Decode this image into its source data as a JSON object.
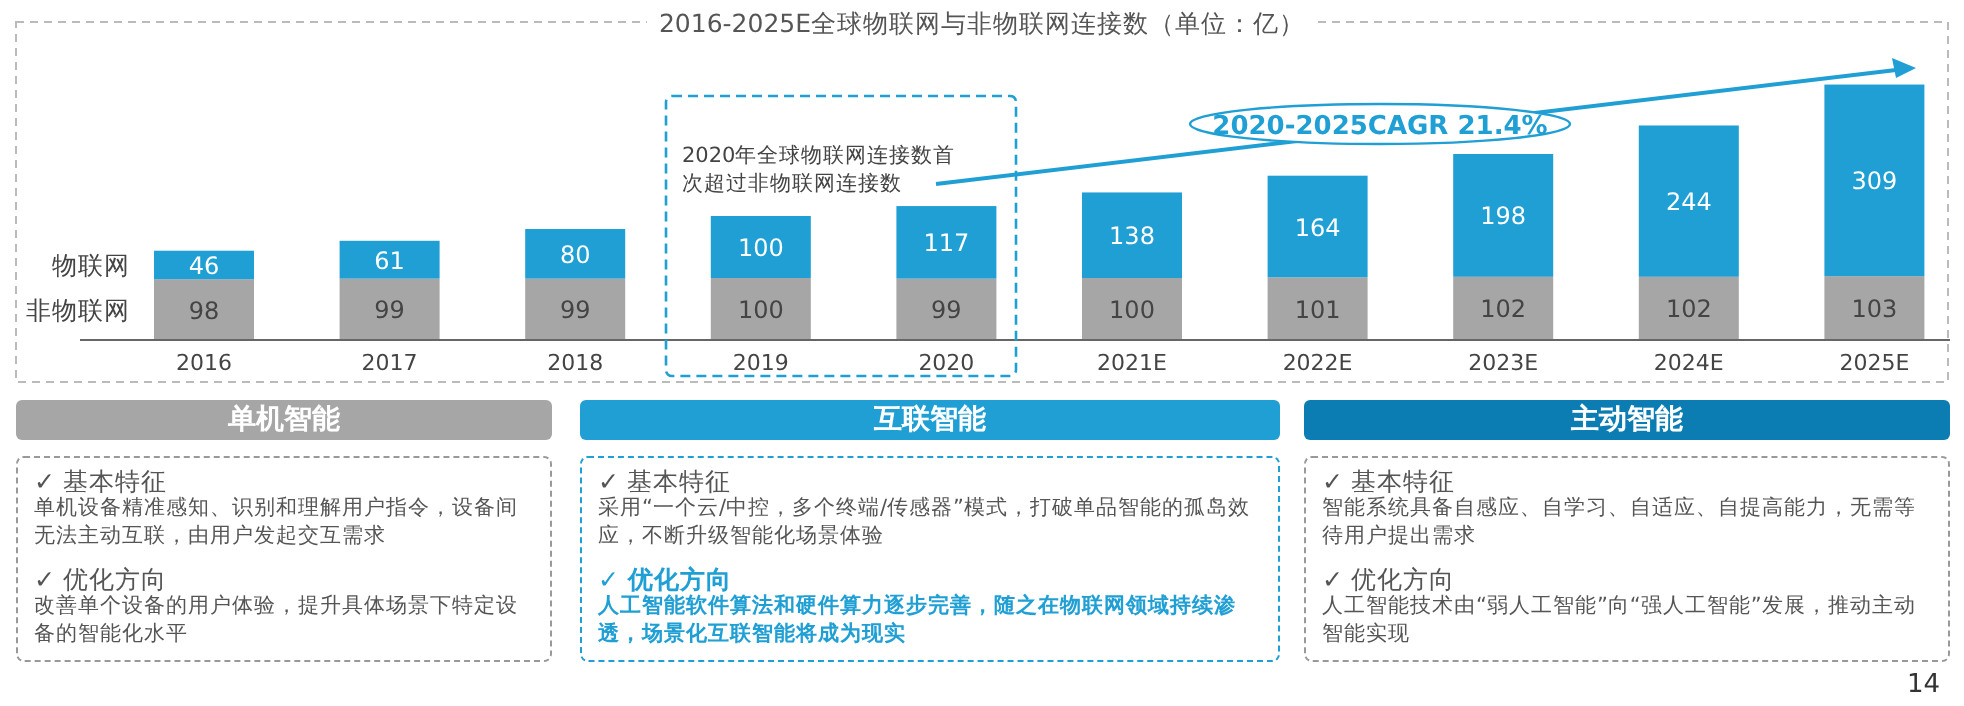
{
  "chart_data": [
    {
      "type": "bar",
      "stacked": true,
      "data_labels": true,
      "legend": "left",
      "title": "2016-2025E全球物联网与非物联网连接数（单位：亿）",
      "categories": [
        "2016",
        "2017",
        "2018",
        "2019",
        "2020",
        "2021E",
        "2022E",
        "2023E",
        "2024E",
        "2025E"
      ],
      "series": [
        {
          "name": "非物联网",
          "color": "#a6a6a6",
          "values": [
            98,
            99,
            99,
            100,
            99,
            100,
            101,
            102,
            102,
            103
          ]
        },
        {
          "name": "物联网",
          "color": "#1f9fd4",
          "values": [
            46,
            61,
            80,
            100,
            117,
            138,
            164,
            198,
            244,
            309
          ]
        }
      ],
      "annotations": [
        "2020年全球物联网连接数首次超过非物联网连接数",
        "2020-2025CAGR 21.4%",
        "14"
      ]
    },
    {
      "type": "other",
      "title": "单机智能",
      "color": "#a6a6a6",
      "annotations": [
        "✓ 基本特征",
        "单机设备精准感知、识别和理解用户指令，设备间无法主动互联，由用户发起交互需求",
        "✓ 优化方向",
        "改善单个设备的用户体验，提升具体场景下特定设备的智能化水平"
      ]
    },
    {
      "type": "other",
      "title": "互联智能",
      "color": "#1f9fd4",
      "annotations": [
        "✓ 基本特征",
        "采用“一个云/中控，多个终端/传感器”模式，打破单品智能的孤岛效应，不断升级智能化场景体验",
        "✓ 优化方向",
        "人工智能软件算法和硬件算力逐步完善，随之在物联网领域持续渗透，场景化互联智能将成为现实"
      ]
    },
    {
      "type": "other",
      "title": "主动智能",
      "color": "#0b7db3",
      "annotations": [
        "✓ 基本特征",
        "智能系统具备自感应、自学习、自适应、自提高能力，无需等待用户提出需求",
        "✓ 优化方向",
        "人工智能技术由“弱人工智能”向“强人工智能”发展，推动主动智能实现"
      ]
    }
  ]
}
